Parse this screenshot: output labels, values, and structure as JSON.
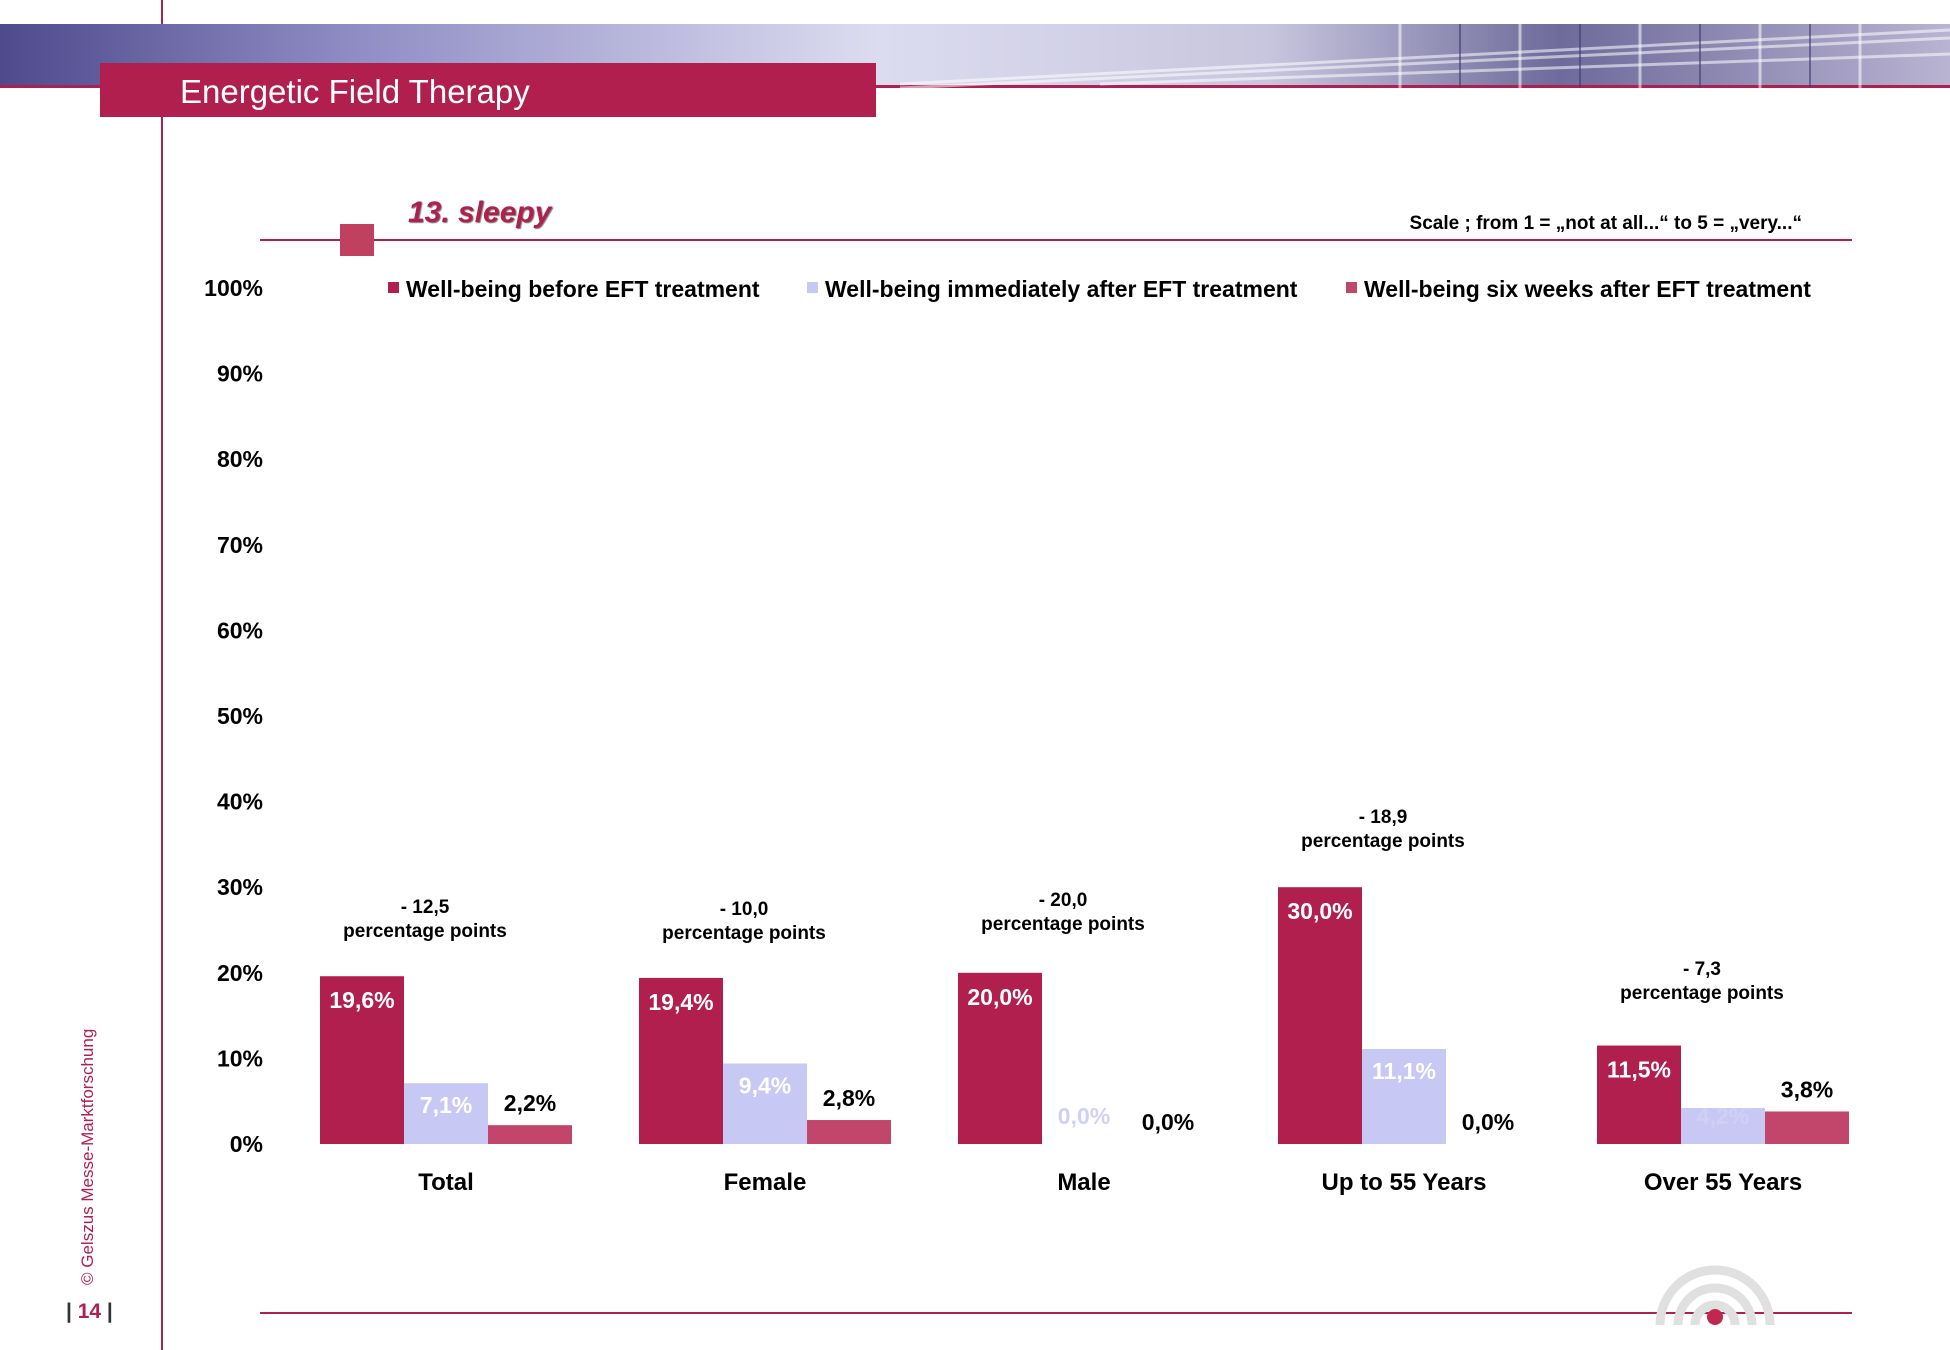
{
  "header": {
    "title": "Energetic Field Therapy"
  },
  "subtitle": "13. sleepy",
  "scale_note": "Scale ; from 1 = „not at all...“  to 5 = „very...“",
  "footer": {
    "page_number": "14",
    "copyright": "© Gelszus Messe-Marktforschung"
  },
  "colors": {
    "accent": "#b01f4e",
    "series1": "#b01f4e",
    "series2": "#c8c8f5",
    "series3": "#c2466c"
  },
  "chart_data": {
    "type": "bar",
    "title": "13. sleepy",
    "categories": [
      "Total",
      "Female",
      "Male",
      "Up to 55 Years",
      "Over 55 Years"
    ],
    "series": [
      {
        "name": "Well-being before EFT treatment",
        "values": [
          19.6,
          19.4,
          20.0,
          30.0,
          11.5
        ],
        "labels": [
          "19,6%",
          "19,4%",
          "20,0%",
          "30,0%",
          "11,5%"
        ]
      },
      {
        "name": "Well-being immediately after EFT treatment",
        "values": [
          7.1,
          9.4,
          0.0,
          11.1,
          4.2
        ],
        "labels": [
          "7,1%",
          "9,4%",
          "0,0%",
          "11,1%",
          "4,2%"
        ]
      },
      {
        "name": "Well-being six weeks after EFT treatment",
        "values": [
          2.2,
          2.8,
          0.0,
          0.0,
          3.8
        ],
        "labels": [
          "2,2%",
          "2,8%",
          "0,0%",
          "0,0%",
          "3,8%"
        ]
      }
    ],
    "yticks": [
      "0%",
      "10%",
      "20%",
      "30%",
      "40%",
      "50%",
      "60%",
      "70%",
      "80%",
      "90%",
      "100%"
    ],
    "ylim": [
      0,
      100
    ],
    "legend_position": "top",
    "grid": false,
    "annotations": [
      {
        "line1": "- 12,5",
        "line2": "percentage points"
      },
      {
        "line1": "- 10,0",
        "line2": "percentage points"
      },
      {
        "line1": "- 20,0",
        "line2": "percentage points"
      },
      {
        "line1": "- 18,9",
        "line2": "percentage points"
      },
      {
        "line1": "- 7,3",
        "line2": "percentage points"
      }
    ]
  }
}
